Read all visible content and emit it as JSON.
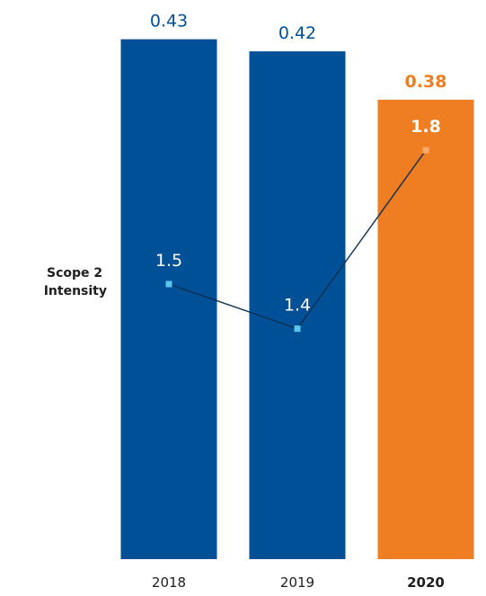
{
  "chart_data": {
    "type": "bar",
    "categories": [
      "2018",
      "2019",
      "2020"
    ],
    "highlight_index": 2,
    "bar_series": {
      "values": [
        0.43,
        0.42,
        0.38
      ],
      "labels": [
        "0.43",
        "0.42",
        "0.38"
      ]
    },
    "line_series": {
      "name": "Scope 2 Intensity",
      "values": [
        1.5,
        1.4,
        1.8
      ],
      "labels": [
        "1.5",
        "1.4",
        "1.8"
      ]
    },
    "series_label_lines": [
      "Scope 2",
      "Intensity"
    ],
    "colors": {
      "bar": "#005098",
      "bar_highlight": "#ef7d22",
      "bar_label": "#005098",
      "line": "#0d2f4f",
      "marker": "#5bc4e8",
      "marker_highlight": "#f6a96b"
    }
  }
}
